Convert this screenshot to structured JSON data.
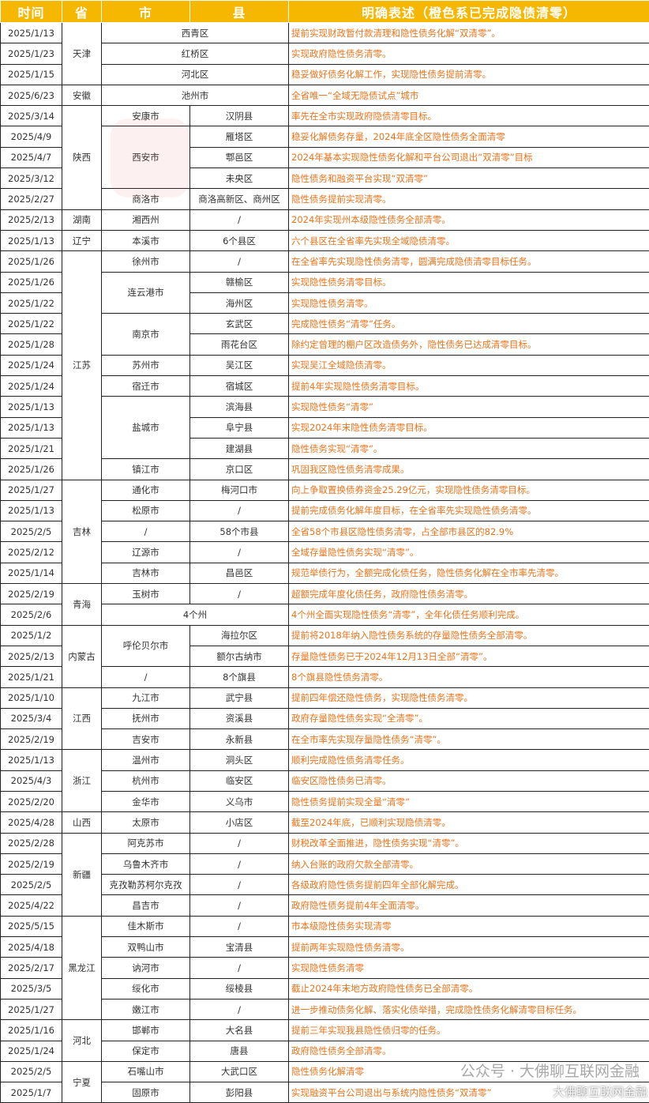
{
  "header": {
    "date": "时间",
    "province": "省",
    "city": "市",
    "county": "县",
    "desc": "明确表述（橙色系已完成隐债清零）"
  },
  "colors": {
    "header_bg": "#F5B700",
    "desc_text": "#E8731A"
  },
  "watermark": {
    "line1": "公众号 · 大佛聊互联网金融",
    "line2": "大佛聊互联网金融"
  },
  "rows": [
    {
      "date": "2025/1/13",
      "province": "天津",
      "area": "西青区",
      "desc": "提前实现财政暂付款清理和隐性债务化解“双清零”。"
    },
    {
      "date": "2025/1/23",
      "area": "红桥区",
      "desc": "实现政府隐性债务清零。"
    },
    {
      "date": "2025/1/15",
      "area": "河北区",
      "desc": "稳妥做好债务化解工作，实现隐性债务提前清零。"
    },
    {
      "date": "2025/6/23",
      "province": "安徽",
      "area": "池州市",
      "desc": "全省唯一“全域无隐债试点”城市"
    },
    {
      "date": "2025/3/14",
      "province": "陕西",
      "city": "安康市",
      "county": "汉阴县",
      "desc": "率先在全市实现政府隐债清零目标。"
    },
    {
      "date": "2025/4/9",
      "city": "西安市",
      "county": "雁塔区",
      "desc": "稳妥化解债务存量，2024年底全区隐性债务全面清零"
    },
    {
      "date": "2025/4/7",
      "county": "鄠邑区",
      "desc": "2024年基本实现隐性债务化解和平台公司退出“双清零”目标"
    },
    {
      "date": "2025/3/12",
      "county": "未央区",
      "desc": "隐性债务和融资平台实现“双清零”"
    },
    {
      "date": "2025/2/27",
      "city": "商洛市",
      "county": "商洛高新区、商州区",
      "desc": "隐性债务提前实现清零。"
    },
    {
      "date": "2025/2/13",
      "province": "湖南",
      "city": "湘西州",
      "county": "/",
      "desc": "2024年实现州本级隐性债务全部清零。"
    },
    {
      "date": "2025/1/13",
      "province": "辽宁",
      "city": "本溪市",
      "county": "6个县区",
      "desc": "六个县区在全省率先实现全域隐债清零。"
    },
    {
      "date": "2025/1/26",
      "province": "江苏",
      "city": "徐州市",
      "county": "/",
      "desc": "在全省率先实现隐性债务清零，圆满完成隐债清零目标任务。"
    },
    {
      "date": "2025/1/26",
      "city": "连云港市",
      "county": "赣榆区",
      "desc": "实现隐性债务清零目标。"
    },
    {
      "date": "2025/1/22",
      "county": "海州区",
      "desc": "实现隐性债务清零。"
    },
    {
      "date": "2025/1/22",
      "city": "南京市",
      "county": "玄武区",
      "desc": "完成隐性债务“清零”任务。"
    },
    {
      "date": "2025/1/28",
      "county": "雨花台区",
      "desc": "除约定曾理的棚户区改造债务外，隐性债务已达成清零目标。"
    },
    {
      "date": "2025/1/24",
      "city": "苏州市",
      "county": "吴江区",
      "desc": "实现吴江全域隐债清零。"
    },
    {
      "date": "2025/1/24",
      "city": "宿迁市",
      "county": "宿城区",
      "desc": "提前4年实现隐性债务清零目标。"
    },
    {
      "date": "2025/1/13",
      "city": "盐城市",
      "county": "滨海县",
      "desc": "实现隐性债务“清零”"
    },
    {
      "date": "2025/1/13",
      "county": "阜宁县",
      "desc": "实现2024年末隐性债务清零目标。"
    },
    {
      "date": "2025/1/21",
      "county": "建湖县",
      "desc": "隐性债务实现“清零”。"
    },
    {
      "date": "2025/1/26",
      "city": "镇江市",
      "county": "京口区",
      "desc": "巩固我区隐性债务清零成果。"
    },
    {
      "date": "2025/1/27",
      "province": "吉林",
      "city": "通化市",
      "county": "梅河口市",
      "desc": "向上争取置换债券资金25.29亿元，实现隐性债务清零目标。"
    },
    {
      "date": "2025/1/13",
      "city": "松原市",
      "county": "/",
      "desc": "提前完成债务化解年度目标，在全省率先实现隐性债务清零。"
    },
    {
      "date": "2025/2/5",
      "city": "/",
      "county": "58个市县",
      "desc": "全省58个市县区隐性债务清零，占全部市县区的82.9%"
    },
    {
      "date": "2025/2/12",
      "city": "辽源市",
      "county": "/",
      "desc": "全域存量隐性债务实现“清零”。"
    },
    {
      "date": "2025/1/14",
      "city": "吉林市",
      "county": "昌邑区",
      "desc": "规范举债行为，全额完成化债任务，隐性债务化解在全市率先清零。"
    },
    {
      "date": "2025/2/19",
      "province": "青海",
      "city": "玉树市",
      "county": "/",
      "desc": "超额完成年度化债任务，政府隐性债务清零。"
    },
    {
      "date": "2025/2/6",
      "area": "4个州",
      "desc": "4个州全面实现隐性债务“清零”，全年化债任务顺利完成。"
    },
    {
      "date": "2025/1/2",
      "province": "内蒙古",
      "city": "呼伦贝尔市",
      "county": "海拉尔区",
      "desc": "提前将2018年纳入隐性债务系统的存量隐性债务全部清零。"
    },
    {
      "date": "2025/2/13",
      "county": "额尔古纳市",
      "desc": "存量隐性债务已于2024年12月13日全部“清零”。"
    },
    {
      "date": "2025/1/21",
      "city": "/",
      "county": "8个旗县",
      "desc": "8个旗县隐性债务清零。"
    },
    {
      "date": "2025/1/10",
      "province": "江西",
      "city": "九江市",
      "county": "武宁县",
      "desc": "提前四年偿还隐性债务，实现隐性债务清零。"
    },
    {
      "date": "2025/3/4",
      "city": "抚州市",
      "county": "资溪县",
      "desc": "政府存量隐性债务实现“全清零”。"
    },
    {
      "date": "2025/2/19",
      "city": "吉安市",
      "county": "永新县",
      "desc": "在全市率先实现存量隐性债务“清零”。"
    },
    {
      "date": "2025/1/13",
      "province": "浙江",
      "city": "温州市",
      "county": "洞头区",
      "desc": "顺利完成隐性债务清零任务。"
    },
    {
      "date": "2025/4/3",
      "city": "杭州市",
      "county": "临安区",
      "desc": "临安区隐性债务已清零。"
    },
    {
      "date": "2025/2/20",
      "city": "金华市",
      "county": "义乌市",
      "desc": "隐性债务提前实现全量“清零”"
    },
    {
      "date": "2025/4/28",
      "province": "山西",
      "city": "太原市",
      "county": "小店区",
      "desc": "截至2024年底，已顺利实现隐债清零。"
    },
    {
      "date": "2025/2/28",
      "province": "新疆",
      "city": "阿克苏市",
      "county": "/",
      "desc": "财税改革全面推进，隐性债务实现“清零”。"
    },
    {
      "date": "2025/2/19",
      "city": "乌鲁木齐市",
      "county": "/",
      "desc": "纳入台账的政府欠款全部清零。"
    },
    {
      "date": "2025/2/5",
      "city": "克孜勒苏柯尔克孜",
      "county": "/",
      "desc": "各级政府隐性债务提前四年全部化解完成。"
    },
    {
      "date": "2025/4/22",
      "city": "昌吉市",
      "county": "/",
      "desc": "政府隐性债务提前4年全面清零。"
    },
    {
      "date": "2025/5/15",
      "province": "黑龙江",
      "city": "佳木斯市",
      "county": "/",
      "desc": "市本级隐性债务实现清零"
    },
    {
      "date": "2025/4/18",
      "city": "双鸭山市",
      "county": "宝清县",
      "desc": "提前两年实现隐性债务清零。"
    },
    {
      "date": "2025/2/17",
      "city": "讷河市",
      "county": "/",
      "desc": "实现隐性债务清零"
    },
    {
      "date": "2025/3/5",
      "city": "绥化市",
      "county": "绥棱县",
      "desc": "截止2024年末地方政府隐性债务已全部清零。"
    },
    {
      "date": "2025/1/27",
      "city": "嫩江市",
      "county": "/",
      "desc": "进一步推动债务化解、落实化债举措，完成隐性债务化解清零目标任务。"
    },
    {
      "date": "2025/1/16",
      "province": "河北",
      "city": "邯郸市",
      "county": "大名县",
      "desc": "提前三年实现我县隐性债归零的任务。"
    },
    {
      "date": "2025/1/24",
      "city": "保定市",
      "county": "唐县",
      "desc": "政府隐性债务全部清零。"
    },
    {
      "date": "2025/2/5",
      "province": "宁夏",
      "city": "石嘴山市",
      "county": "大武口区",
      "desc": "隐性债务化解清零"
    },
    {
      "date": "2025/1/7",
      "city": "固原市",
      "county": "彭阳县",
      "desc": "实现融资平台公司退出与系统内隐性债务“双清零”"
    }
  ]
}
